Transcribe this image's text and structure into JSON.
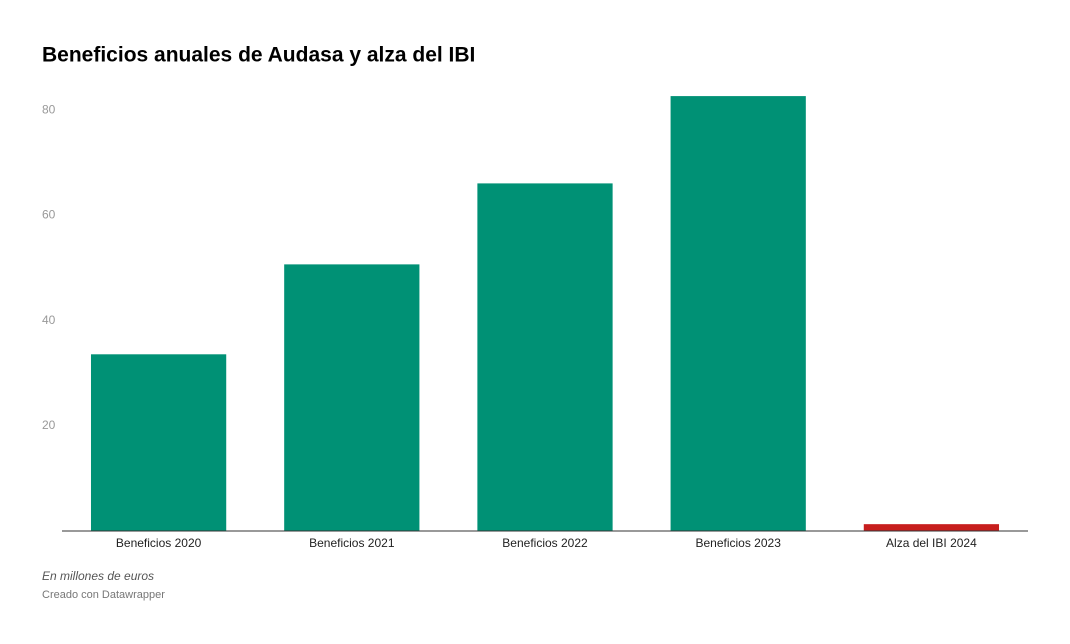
{
  "chart_data": {
    "type": "bar",
    "title": "Beneficios anuales de Audasa y alza del IBI",
    "categories": [
      "Beneficios 2020",
      "Beneficios 2021",
      "Beneficios 2022",
      "Beneficios 2023",
      "Alza del IBI 2024"
    ],
    "values": [
      33.6,
      50.7,
      66.1,
      82.7,
      1.3
    ],
    "colors": [
      "#009175",
      "#009175",
      "#009175",
      "#009175",
      "#c71e1d"
    ],
    "ylim": [
      0,
      85
    ],
    "yticks": [
      20,
      40,
      60,
      80
    ],
    "grid": false,
    "notes": "En millones de euros",
    "source": "Creado con Datawrapper"
  }
}
